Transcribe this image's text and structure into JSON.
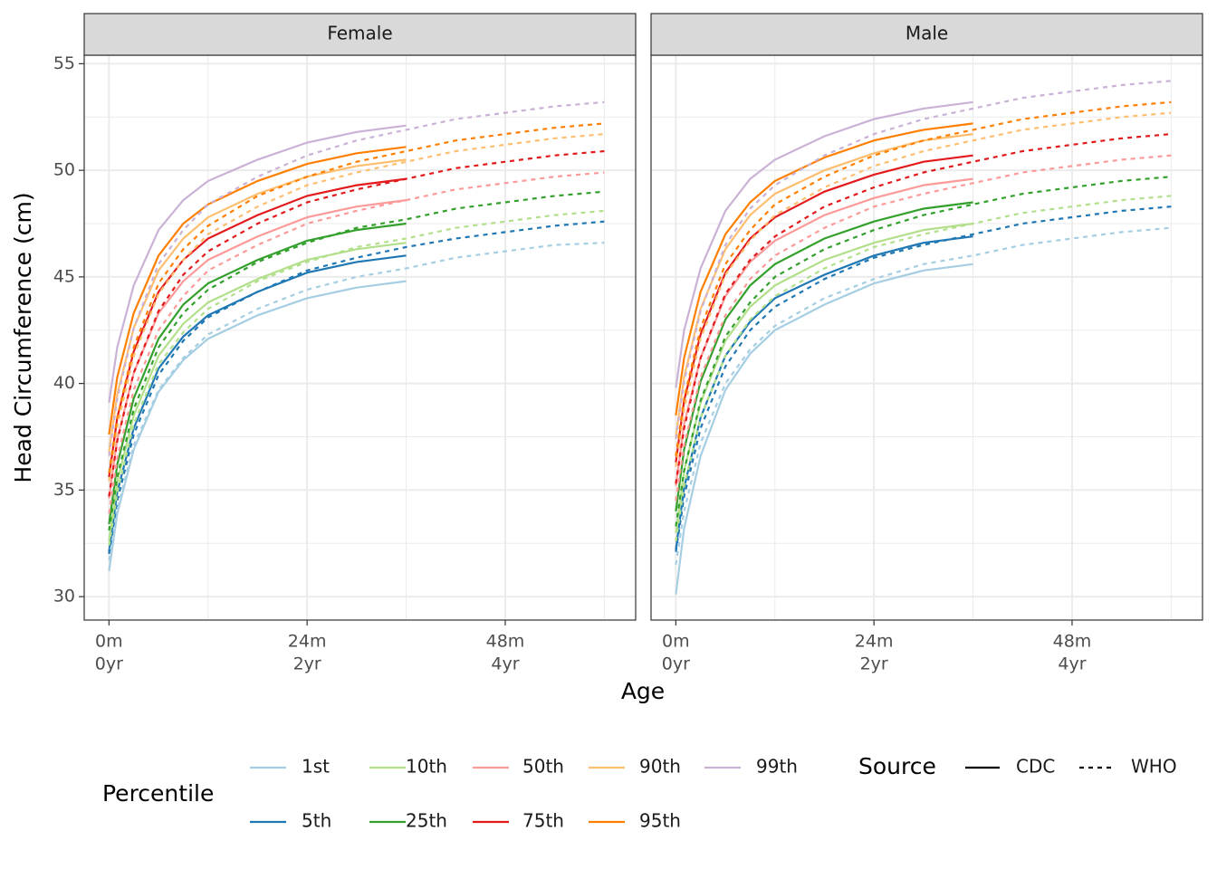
{
  "chart_data": {
    "type": "line",
    "x_label": "Age",
    "y_label": "Head Circumference (cm)",
    "xlim": [
      -3,
      63.8
    ],
    "ylim": [
      28.9,
      55.4
    ],
    "xticks": [
      {
        "value": 0,
        "label": [
          "0m",
          "0yr"
        ]
      },
      {
        "value": 24,
        "label": [
          "24m",
          "2yr"
        ]
      },
      {
        "value": 48,
        "label": [
          "48m",
          "4yr"
        ]
      }
    ],
    "minor_xticks": [
      12,
      36,
      60
    ],
    "yticks": [
      30,
      35,
      40,
      45,
      50,
      55
    ],
    "minor_yticks": [
      32.5,
      37.5,
      42.5,
      47.5,
      52.5
    ],
    "grid": true,
    "percentile_title": "Percentile",
    "percentiles": [
      {
        "name": "1st",
        "color": "#a6cee3"
      },
      {
        "name": "5th",
        "color": "#1f78b4"
      },
      {
        "name": "10th",
        "color": "#b2df8a"
      },
      {
        "name": "25th",
        "color": "#33a02c"
      },
      {
        "name": "50th",
        "color": "#fb9a99"
      },
      {
        "name": "75th",
        "color": "#e31a1c"
      },
      {
        "name": "90th",
        "color": "#fdbf6f"
      },
      {
        "name": "95th",
        "color": "#ff7f00"
      },
      {
        "name": "99th",
        "color": "#cab2d6"
      }
    ],
    "source_title": "Source",
    "sources": [
      {
        "name": "CDC",
        "dash": "solid",
        "x": [
          0,
          1,
          3,
          6,
          9,
          12,
          18,
          24,
          30,
          36
        ]
      },
      {
        "name": "WHO",
        "dash": "dashed",
        "x": [
          0,
          1,
          3,
          6,
          9,
          12,
          18,
          24,
          30,
          36,
          42,
          48,
          54,
          60
        ]
      }
    ],
    "panels": [
      {
        "title": "Female",
        "lines": [
          [
            [
              31.2,
              33.9,
              36.9,
              39.6,
              41.1,
              42.1,
              43.2,
              44.0,
              44.5,
              44.8
            ],
            [
              32.1,
              34.9,
              37.9,
              40.7,
              42.2,
              43.2,
              44.3,
              45.2,
              45.7,
              46.0
            ],
            [
              32.6,
              35.4,
              38.5,
              41.3,
              42.8,
              43.8,
              44.9,
              45.8,
              46.3,
              46.6
            ],
            [
              33.4,
              36.2,
              39.3,
              42.1,
              43.7,
              44.7,
              45.8,
              46.7,
              47.2,
              47.5
            ],
            [
              34.6,
              37.4,
              40.5,
              43.3,
              44.8,
              45.8,
              46.9,
              47.8,
              48.3,
              48.6
            ],
            [
              35.6,
              38.4,
              41.5,
              44.3,
              45.8,
              46.8,
              47.9,
              48.8,
              49.3,
              49.6
            ],
            [
              36.8,
              39.5,
              42.6,
              45.3,
              46.8,
              47.8,
              48.9,
              49.7,
              50.2,
              50.5
            ],
            [
              37.6,
              40.3,
              43.3,
              46.0,
              47.5,
              48.4,
              49.5,
              50.3,
              50.8,
              51.1
            ],
            [
              39.1,
              41.7,
              44.6,
              47.2,
              48.6,
              49.5,
              50.5,
              51.3,
              51.8,
              52.1
            ]
          ],
          [
            [
              31.7,
              34.1,
              37.1,
              39.7,
              41.2,
              42.3,
              43.5,
              44.4,
              45.0,
              45.4,
              45.9,
              46.2,
              46.5,
              46.6
            ],
            [
              32.0,
              34.5,
              37.6,
              40.4,
              42.0,
              43.1,
              44.3,
              45.3,
              45.9,
              46.4,
              46.8,
              47.1,
              47.4,
              47.6
            ],
            [
              32.4,
              34.9,
              38.1,
              40.9,
              42.4,
              43.5,
              44.8,
              45.7,
              46.4,
              46.8,
              47.3,
              47.6,
              47.9,
              48.1
            ],
            [
              33.1,
              35.6,
              38.8,
              41.7,
              43.3,
              44.4,
              45.7,
              46.6,
              47.3,
              47.7,
              48.2,
              48.5,
              48.8,
              49.0
            ],
            [
              33.9,
              36.5,
              39.7,
              42.5,
              44.1,
              45.3,
              46.5,
              47.5,
              48.1,
              48.6,
              49.1,
              49.4,
              49.7,
              49.9
            ],
            [
              34.7,
              37.3,
              40.5,
              43.4,
              45.1,
              46.2,
              47.5,
              48.5,
              49.1,
              49.6,
              50.1,
              50.4,
              50.7,
              50.9
            ],
            [
              35.4,
              38.0,
              41.3,
              44.2,
              45.8,
              47.0,
              48.3,
              49.3,
              49.9,
              50.4,
              50.9,
              51.2,
              51.5,
              51.7
            ],
            [
              35.8,
              38.4,
              41.7,
              44.7,
              46.3,
              47.4,
              48.8,
              49.7,
              50.4,
              50.9,
              51.4,
              51.7,
              52.0,
              52.2
            ],
            [
              36.6,
              39.3,
              42.6,
              45.6,
              47.2,
              48.4,
              49.7,
              50.7,
              51.4,
              51.9,
              52.4,
              52.7,
              53.0,
              53.2
            ]
          ]
        ]
      },
      {
        "title": "Male",
        "lines": [
          [
            [
              30.1,
              33.2,
              36.6,
              39.7,
              41.4,
              42.5,
              43.7,
              44.7,
              45.3,
              45.6
            ],
            [
              32.2,
              35.1,
              38.4,
              41.3,
              42.9,
              44.0,
              45.1,
              46.0,
              46.6,
              46.9
            ],
            [
              33.0,
              35.9,
              39.1,
              42.0,
              43.6,
              44.6,
              45.8,
              46.6,
              47.2,
              47.5
            ],
            [
              34.0,
              36.9,
              40.1,
              43.0,
              44.6,
              45.6,
              46.8,
              47.6,
              48.2,
              48.5
            ],
            [
              35.2,
              38.1,
              41.2,
              44.1,
              45.7,
              46.7,
              47.9,
              48.7,
              49.3,
              49.6
            ],
            [
              36.3,
              39.2,
              42.3,
              45.2,
              46.8,
              47.8,
              49.0,
              49.8,
              50.4,
              50.7
            ],
            [
              37.5,
              40.3,
              43.5,
              46.3,
              47.9,
              48.9,
              50.0,
              50.8,
              51.4,
              51.7
            ],
            [
              38.5,
              41.2,
              44.3,
              47.0,
              48.5,
              49.5,
              50.6,
              51.4,
              51.9,
              52.2
            ],
            [
              39.8,
              42.5,
              45.4,
              48.1,
              49.6,
              50.5,
              51.6,
              52.4,
              52.9,
              53.2
            ]
          ],
          [
            [
              31.5,
              34.0,
              37.2,
              40.0,
              41.6,
              42.7,
              44.0,
              44.9,
              45.6,
              46.0,
              46.5,
              46.8,
              47.1,
              47.3
            ],
            [
              32.1,
              34.7,
              37.9,
              40.8,
              42.5,
              43.6,
              44.9,
              45.9,
              46.5,
              47.0,
              47.5,
              47.8,
              48.1,
              48.3
            ],
            [
              32.6,
              35.2,
              38.4,
              41.3,
              43.0,
              44.1,
              45.4,
              46.4,
              47.0,
              47.5,
              48.0,
              48.3,
              48.6,
              48.8
            ],
            [
              33.3,
              35.9,
              39.2,
              42.2,
              43.8,
              45.0,
              46.3,
              47.2,
              47.9,
              48.4,
              48.9,
              49.2,
              49.5,
              49.7
            ],
            [
              34.5,
              37.1,
              40.3,
              43.2,
              44.9,
              46.0,
              47.3,
              48.3,
              48.9,
              49.4,
              49.9,
              50.2,
              50.5,
              50.7
            ],
            [
              35.3,
              37.9,
              41.2,
              44.2,
              45.8,
              46.9,
              48.3,
              49.2,
              49.9,
              50.4,
              50.9,
              51.2,
              51.5,
              51.7
            ],
            [
              36.1,
              38.8,
              42.1,
              45.1,
              46.7,
              47.9,
              49.2,
              50.2,
              50.9,
              51.4,
              51.9,
              52.2,
              52.5,
              52.7
            ],
            [
              36.6,
              39.3,
              42.6,
              45.6,
              47.2,
              48.4,
              49.7,
              50.7,
              51.4,
              51.9,
              52.4,
              52.7,
              53.0,
              53.2
            ],
            [
              37.4,
              40.1,
              43.4,
              46.5,
              48.2,
              49.3,
              50.7,
              51.7,
              52.4,
              52.9,
              53.4,
              53.7,
              54.0,
              54.2
            ]
          ]
        ]
      }
    ]
  }
}
